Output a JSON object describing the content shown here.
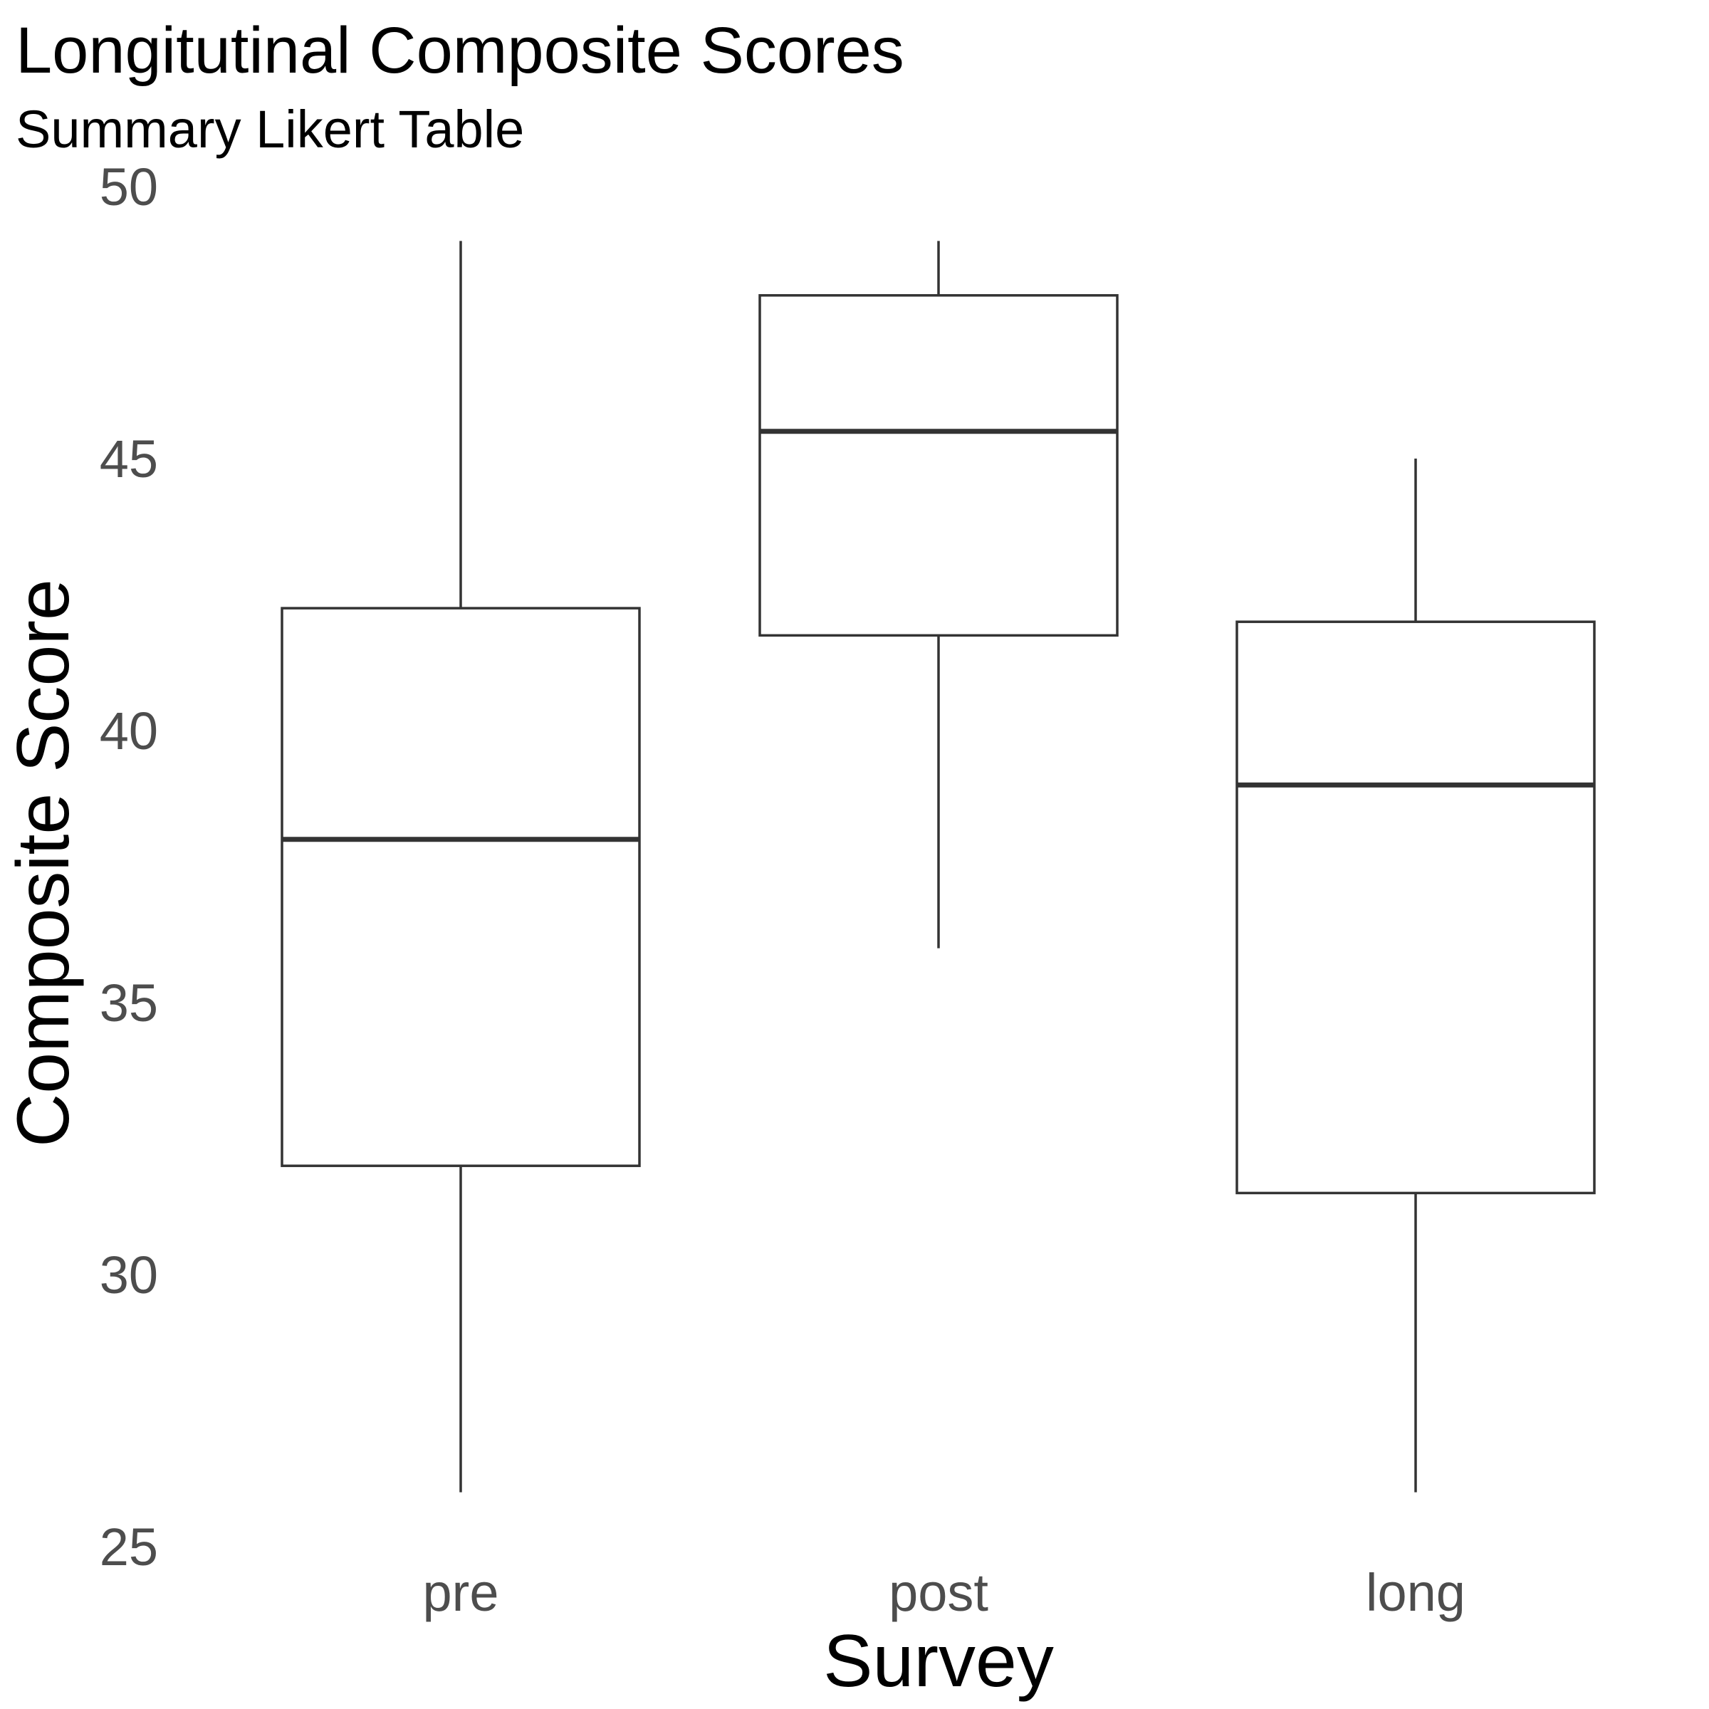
{
  "chart_data": {
    "type": "boxplot",
    "title": "Longitutinal Composite Scores",
    "subtitle": "Summary Likert Table",
    "xlabel": "Survey",
    "ylabel": "Composite Score",
    "categories": [
      "pre",
      "post",
      "long"
    ],
    "boxes": [
      {
        "category": "pre",
        "whisker_low": 26,
        "q1": 32,
        "median": 38,
        "q3": 42.25,
        "whisker_high": 49
      },
      {
        "category": "post",
        "whisker_low": 36,
        "q1": 41.75,
        "median": 45.5,
        "q3": 48,
        "whisker_high": 49
      },
      {
        "category": "long",
        "whisker_low": 26,
        "q1": 31.5,
        "median": 39,
        "q3": 42,
        "whisker_high": 45
      }
    ],
    "yticks": [
      25,
      30,
      35,
      40,
      45,
      50
    ],
    "ylim": [
      25,
      50
    ],
    "grid": false,
    "legend": "none",
    "colors": {
      "box_fill": "#ffffff",
      "box_stroke": "#333333",
      "tick_text": "#4d4d4d",
      "title_text": "#000000"
    }
  }
}
